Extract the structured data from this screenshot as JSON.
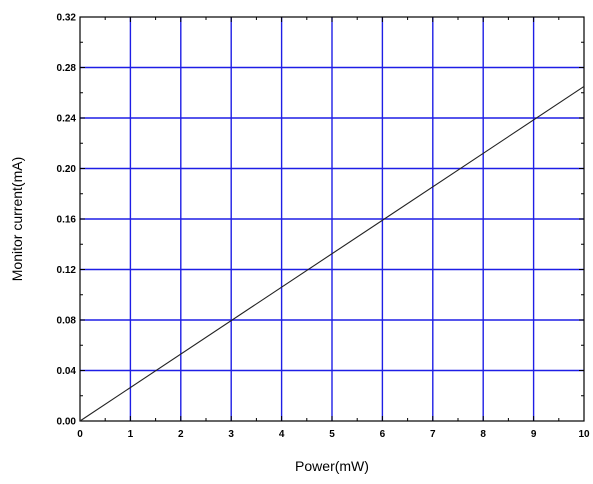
{
  "chart_data": {
    "type": "line",
    "xlabel": "Power(mW)",
    "ylabel": "Monitor current(mA)",
    "xlim": [
      0,
      10
    ],
    "ylim": [
      0,
      0.32
    ],
    "x_ticks": [
      0,
      1,
      2,
      3,
      4,
      5,
      6,
      7,
      8,
      9,
      10
    ],
    "x_tick_labels": [
      "0",
      "1",
      "2",
      "3",
      "4",
      "5",
      "6",
      "7",
      "8",
      "9",
      "10"
    ],
    "y_ticks": [
      0,
      0.04,
      0.08,
      0.12,
      0.16,
      0.2,
      0.24,
      0.28,
      0.32
    ],
    "y_tick_labels": [
      "0.00",
      "0.04",
      "0.08",
      "0.12",
      "0.16",
      "0.20",
      "0.24",
      "0.28",
      "0.32"
    ],
    "grid": true,
    "grid_color": "#1e1ee6",
    "line_color": "#222222",
    "series": [
      {
        "x": [
          0,
          10
        ],
        "y": [
          0,
          0.265
        ]
      }
    ]
  }
}
